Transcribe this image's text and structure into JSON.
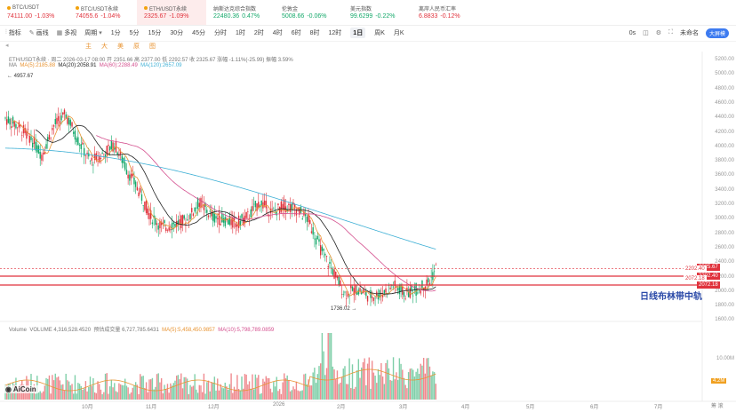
{
  "tickers": [
    {
      "name": "BTC/USDT",
      "price": "74111.00",
      "change": "-1.03%",
      "color": "red"
    },
    {
      "name": "BTC/USDT永续",
      "price": "74055.6",
      "change": "-1.04%",
      "color": "red"
    },
    {
      "name": "ETH/USDT永续",
      "price": "2325.67",
      "change": "-1.09%",
      "color": "red"
    },
    {
      "name": "纳斯达克综合指数",
      "price": "22480.36",
      "change": "0.47%",
      "color": "green"
    },
    {
      "name": "伦敦金",
      "price": "5008.66",
      "change": "-0.06%",
      "color": "green"
    },
    {
      "name": "美元指数",
      "price": "99.6299",
      "change": "-0.22%",
      "color": "green"
    },
    {
      "name": "离岸人民币汇率",
      "price": "6.8833",
      "change": "-0.12%",
      "color": "red"
    }
  ],
  "toolbar": {
    "indicators": "指标",
    "quick": "画线",
    "compare": "多视",
    "period": "周期",
    "intervals": [
      "1分",
      "5分",
      "15分",
      "30分",
      "45分",
      "分时",
      "1时",
      "2时",
      "4时",
      "6时",
      "8时",
      "12时",
      "1日",
      "周K",
      "月K"
    ],
    "active": "1日",
    "right_0s": "0s",
    "custom": "未命名",
    "pro_btn": "大屏模"
  },
  "tabs": [
    "主",
    "大",
    "美",
    "原",
    "图"
  ],
  "symbol_line": "ETH/USDT永续 · 周二 2026-03-17 08:00 开 2351.66 高 2377.00 低 2292.57 收 2325.67 涨幅 -1.11%(-25.99) 振幅 3.59%",
  "ma_legend": {
    "label": "MA",
    "ma5": "MA(5):2185.88",
    "ma20": "MA(20):2058.91",
    "ma60": "MA(60):2288.49",
    "ma120": "MA(120):2657.09"
  },
  "high_label": "4957.67",
  "low_label": "1736.02",
  "annotation": "日线布林带中轨",
  "price_axis": [
    "5200.00",
    "5000.00",
    "4800.00",
    "4600.00",
    "4400.00",
    "4200.00",
    "4000.00",
    "3800.00",
    "3600.00",
    "3400.00",
    "3200.00",
    "3000.00",
    "2800.00",
    "2600.00",
    "2400.00",
    "2200.00",
    "2000.00",
    "1800.00",
    "1600.00"
  ],
  "tags": {
    "current": "2325.67",
    "upper": "2202.40",
    "lower": "2072.18",
    "ghost1": "2202.40",
    "ghost2": "2072.18"
  },
  "volume_legend": {
    "label": "Volume",
    "vol": "VOLUME 4,316,528.4520",
    "est": "预估成交量 6,727,785.6431",
    "ma5": "MA(5):5,458,450.9857",
    "ma10": "MA(10):5,798,789.0859"
  },
  "vol_axis": [
    "10.00M",
    "4.2M"
  ],
  "months": [
    "10月",
    "11月",
    "12月",
    "2026",
    "2月",
    "3月",
    "4月",
    "5月",
    "6月",
    "7月"
  ],
  "logo": "AiCoin",
  "right_extra": "筹 滚"
}
